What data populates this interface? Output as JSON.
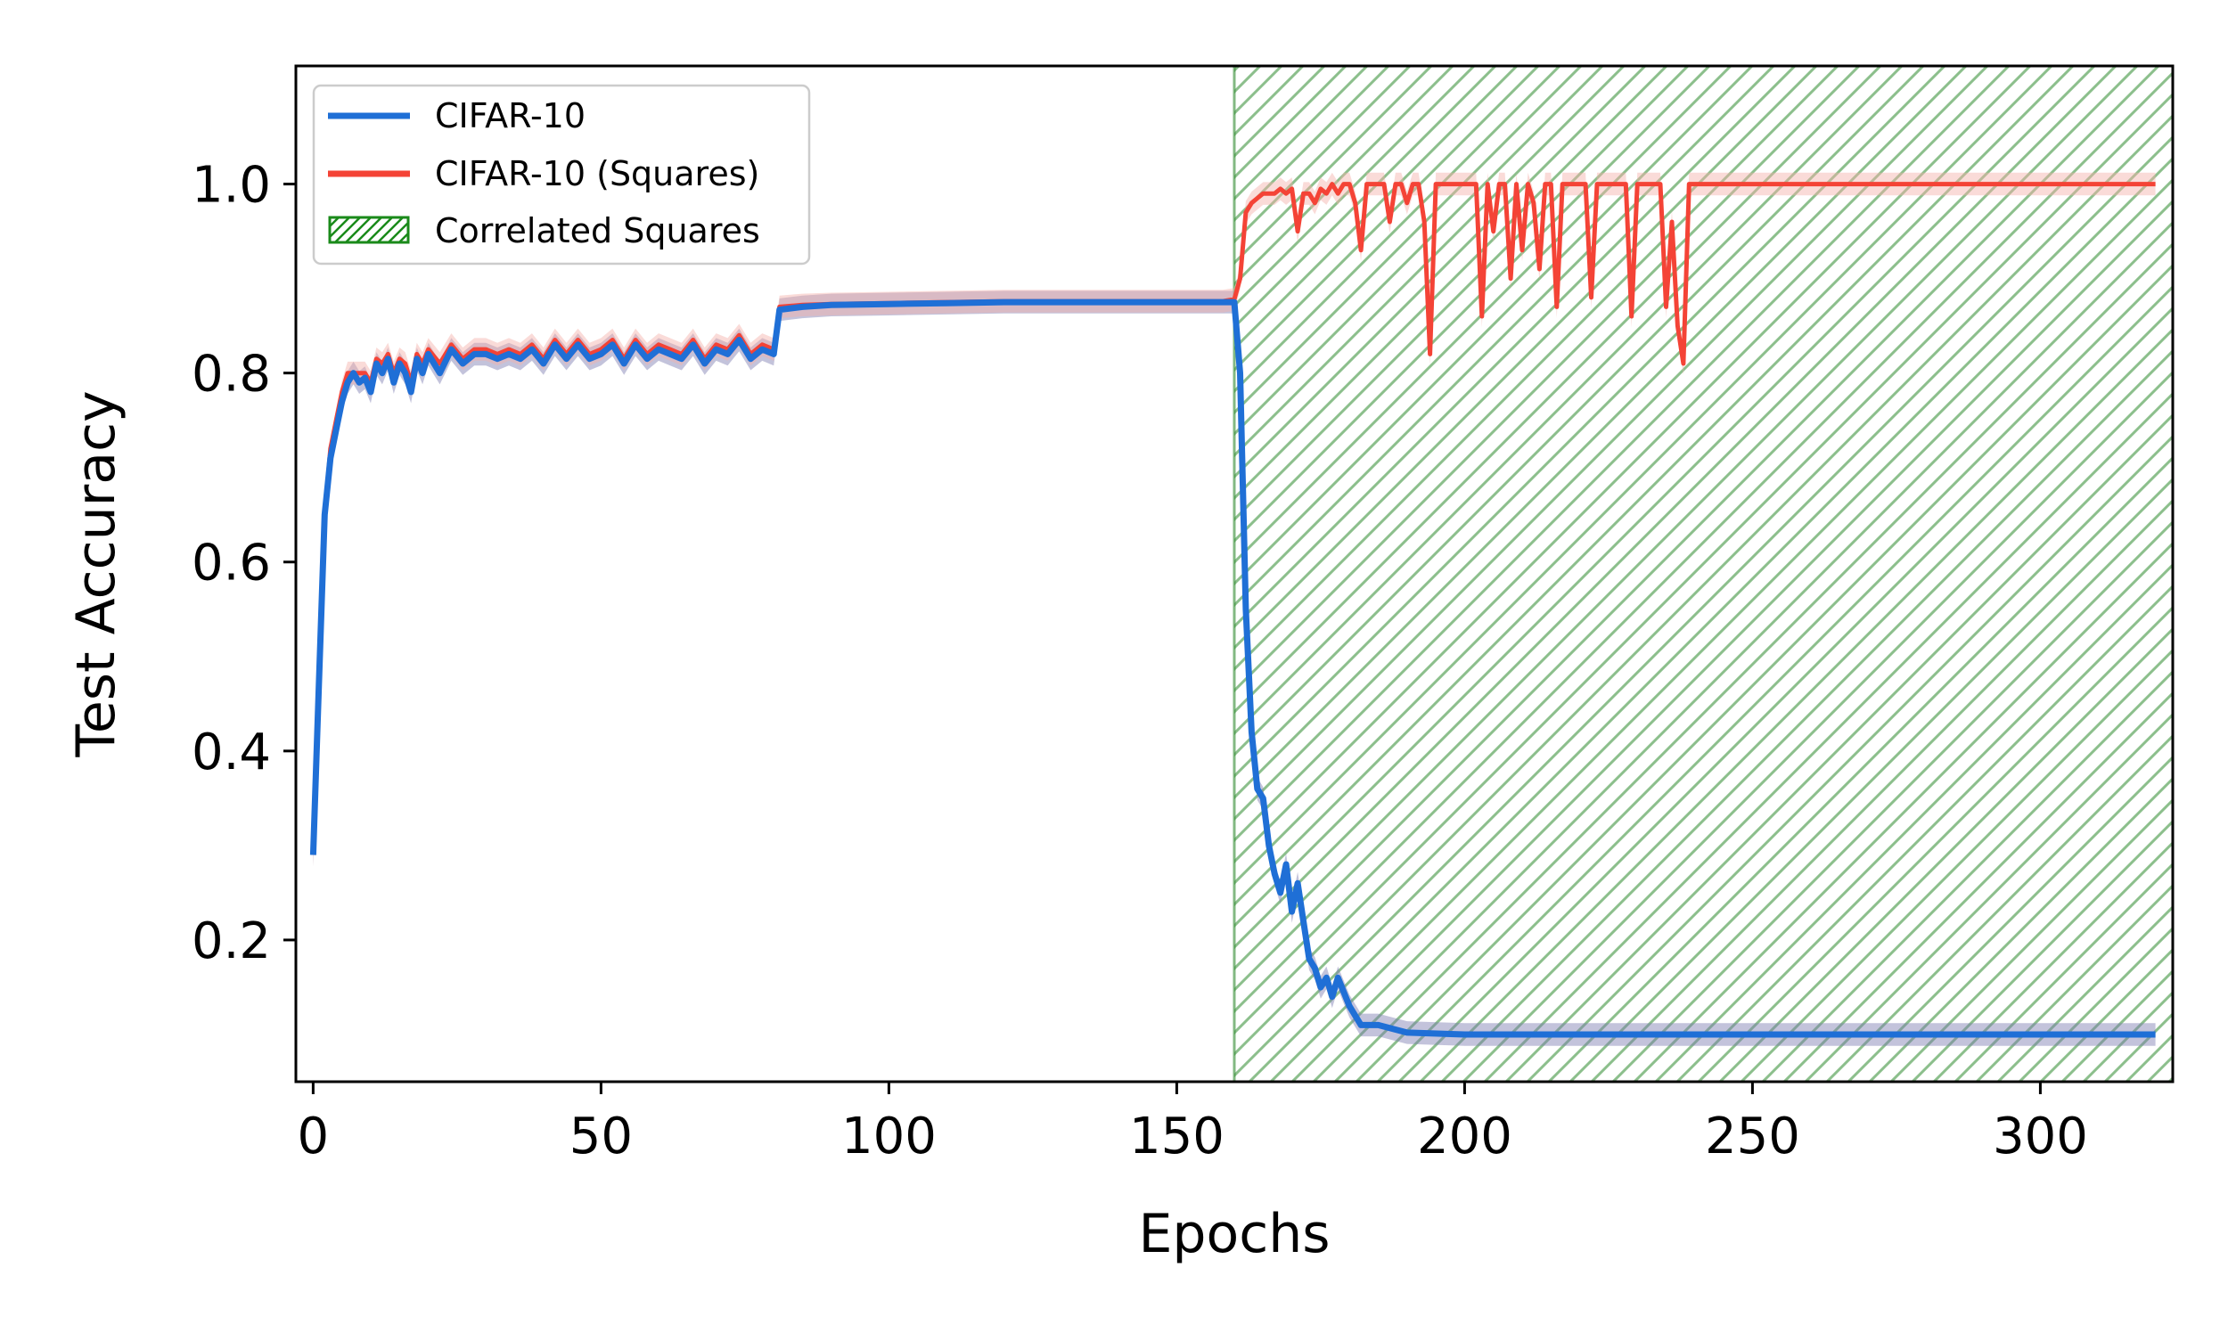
{
  "chart_data": {
    "type": "line",
    "title": "",
    "xlabel": "Epochs",
    "ylabel": "Test Accuracy",
    "xlim": [
      -3,
      323
    ],
    "ylim": [
      0.05,
      1.125
    ],
    "xticks": [
      0,
      50,
      100,
      150,
      200,
      250,
      300
    ],
    "yticks": [
      0.2,
      0.4,
      0.6,
      0.8,
      1.0
    ],
    "xtick_labels": [
      "0",
      "50",
      "100",
      "150",
      "200",
      "250",
      "300"
    ],
    "ytick_labels": [
      "0.2",
      "0.4",
      "0.6",
      "0.8",
      "1.0"
    ],
    "grid": false,
    "legend_position": "upper-left",
    "shaded_region": {
      "name": "Correlated Squares",
      "x_start": 160,
      "x_end": 323,
      "pattern": "diagonal-hatch",
      "color": "#2e8b2e"
    },
    "series": [
      {
        "name": "CIFAR-10",
        "color": "#1f6fd6",
        "band_color": "#7b7bb0",
        "x": [
          0,
          1,
          2,
          3,
          4,
          5,
          6,
          7,
          8,
          9,
          10,
          11,
          12,
          13,
          14,
          15,
          16,
          17,
          18,
          19,
          20,
          22,
          24,
          26,
          28,
          30,
          32,
          34,
          36,
          38,
          40,
          42,
          44,
          46,
          48,
          50,
          52,
          54,
          56,
          58,
          60,
          62,
          64,
          66,
          68,
          70,
          72,
          74,
          76,
          78,
          80,
          81,
          85,
          90,
          100,
          110,
          120,
          130,
          140,
          150,
          158,
          160,
          161,
          162,
          163,
          164,
          165,
          166,
          167,
          168,
          169,
          170,
          171,
          172,
          173,
          174,
          175,
          176,
          177,
          178,
          180,
          182,
          185,
          190,
          200,
          210,
          220,
          230,
          240,
          250,
          260,
          280,
          300,
          320
        ],
        "y": [
          0.29,
          0.47,
          0.65,
          0.71,
          0.74,
          0.77,
          0.79,
          0.8,
          0.79,
          0.795,
          0.78,
          0.81,
          0.8,
          0.815,
          0.79,
          0.81,
          0.8,
          0.78,
          0.815,
          0.8,
          0.82,
          0.8,
          0.825,
          0.81,
          0.82,
          0.82,
          0.815,
          0.82,
          0.815,
          0.825,
          0.81,
          0.83,
          0.815,
          0.83,
          0.815,
          0.82,
          0.83,
          0.81,
          0.83,
          0.815,
          0.825,
          0.82,
          0.815,
          0.83,
          0.81,
          0.825,
          0.82,
          0.835,
          0.815,
          0.825,
          0.82,
          0.867,
          0.87,
          0.872,
          0.873,
          0.874,
          0.875,
          0.875,
          0.875,
          0.875,
          0.875,
          0.875,
          0.8,
          0.55,
          0.42,
          0.36,
          0.35,
          0.3,
          0.27,
          0.25,
          0.28,
          0.23,
          0.26,
          0.22,
          0.18,
          0.17,
          0.15,
          0.16,
          0.14,
          0.16,
          0.13,
          0.11,
          0.11,
          0.102,
          0.1,
          0.1,
          0.1,
          0.1,
          0.1,
          0.1,
          0.1,
          0.1,
          0.1,
          0.1
        ]
      },
      {
        "name": "CIFAR-10 (Squares)",
        "color": "#f44336",
        "band_color": "#f4b0a8",
        "x": [
          0,
          1,
          2,
          3,
          4,
          5,
          6,
          7,
          8,
          9,
          10,
          11,
          12,
          13,
          14,
          15,
          16,
          17,
          18,
          19,
          20,
          22,
          24,
          26,
          28,
          30,
          32,
          34,
          36,
          38,
          40,
          42,
          44,
          46,
          48,
          50,
          52,
          54,
          56,
          58,
          60,
          62,
          64,
          66,
          68,
          70,
          72,
          74,
          76,
          78,
          80,
          81,
          85,
          90,
          100,
          110,
          120,
          130,
          140,
          150,
          158,
          160,
          161,
          162,
          163,
          164,
          165,
          166,
          167,
          168,
          169,
          170,
          171,
          172,
          173,
          174,
          175,
          176,
          177,
          178,
          179,
          180,
          181,
          182,
          183,
          184,
          185,
          186,
          187,
          188,
          189,
          190,
          191,
          192,
          193,
          194,
          195,
          196,
          197,
          198,
          199,
          200,
          201,
          202,
          203,
          204,
          205,
          206,
          207,
          208,
          209,
          210,
          211,
          212,
          213,
          214,
          215,
          216,
          217,
          218,
          219,
          220,
          221,
          222,
          223,
          224,
          225,
          226,
          227,
          228,
          229,
          230,
          231,
          232,
          233,
          234,
          235,
          236,
          237,
          238,
          239,
          240,
          250,
          260,
          280,
          300,
          320
        ],
        "y": [
          0.29,
          0.48,
          0.65,
          0.72,
          0.75,
          0.78,
          0.8,
          0.8,
          0.8,
          0.8,
          0.79,
          0.815,
          0.81,
          0.82,
          0.8,
          0.815,
          0.81,
          0.79,
          0.82,
          0.81,
          0.825,
          0.81,
          0.83,
          0.815,
          0.825,
          0.825,
          0.82,
          0.825,
          0.82,
          0.83,
          0.815,
          0.835,
          0.82,
          0.835,
          0.82,
          0.825,
          0.835,
          0.815,
          0.835,
          0.82,
          0.83,
          0.825,
          0.82,
          0.835,
          0.815,
          0.83,
          0.825,
          0.84,
          0.82,
          0.83,
          0.825,
          0.87,
          0.872,
          0.873,
          0.874,
          0.875,
          0.876,
          0.876,
          0.876,
          0.876,
          0.876,
          0.878,
          0.9,
          0.97,
          0.98,
          0.985,
          0.99,
          0.99,
          0.99,
          0.995,
          0.99,
          0.995,
          0.95,
          0.99,
          0.99,
          0.98,
          0.995,
          0.99,
          1.0,
          0.99,
          1.0,
          1.0,
          0.98,
          0.93,
          1.0,
          1.0,
          1.0,
          1.0,
          0.96,
          1.0,
          1.0,
          0.98,
          1.0,
          1.0,
          0.96,
          0.82,
          1.0,
          1.0,
          1.0,
          1.0,
          1.0,
          1.0,
          1.0,
          1.0,
          0.86,
          1.0,
          0.95,
          1.0,
          1.0,
          0.9,
          1.0,
          0.93,
          1.0,
          0.98,
          0.91,
          1.0,
          1.0,
          0.87,
          1.0,
          1.0,
          1.0,
          1.0,
          1.0,
          0.88,
          1.0,
          1.0,
          1.0,
          1.0,
          1.0,
          1.0,
          0.86,
          1.0,
          1.0,
          1.0,
          1.0,
          1.0,
          0.87,
          0.96,
          0.85,
          0.81,
          1.0,
          1.0,
          1.0,
          1.0,
          1.0,
          1.0,
          1.0
        ]
      }
    ]
  }
}
